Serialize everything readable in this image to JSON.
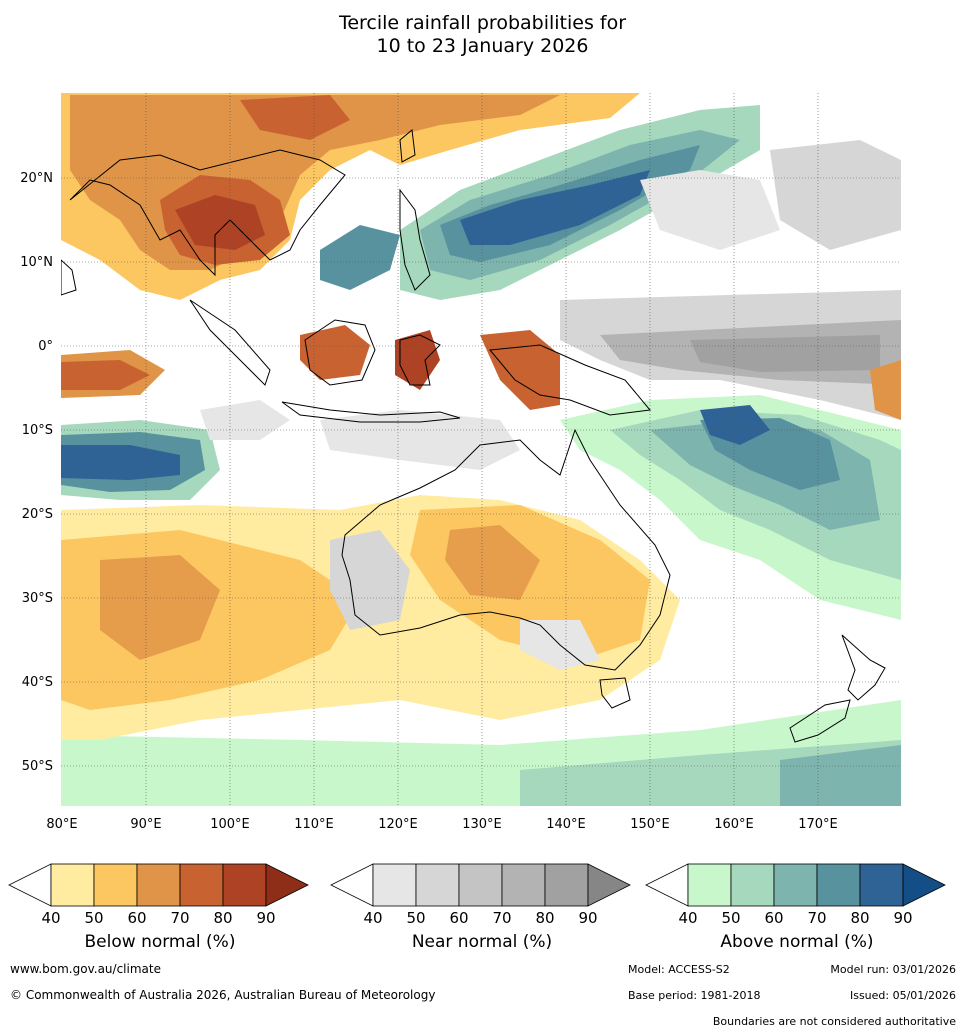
{
  "title_line1": "Tercile rainfall probabilities for",
  "title_line2": "10 to 23 January 2026",
  "map": {
    "lat_labels": [
      "20°N",
      "10°N",
      "0°",
      "10°S",
      "20°S",
      "30°S",
      "40°S",
      "50°S"
    ],
    "lon_labels": [
      "80°E",
      "90°E",
      "100°E",
      "110°E",
      "120°E",
      "130°E",
      "140°E",
      "150°E",
      "160°E",
      "170°E"
    ]
  },
  "colorbars": [
    {
      "title": "Below normal (%)",
      "ticks": [
        "40",
        "50",
        "60",
        "70",
        "80",
        "90"
      ],
      "colors": [
        "#ffeca0",
        "#fcc761",
        "#e09448",
        "#c96231",
        "#ad4225",
        "#8e2e19"
      ]
    },
    {
      "title": "Near normal (%)",
      "ticks": [
        "40",
        "50",
        "60",
        "70",
        "80",
        "90"
      ],
      "colors": [
        "#e6e6e6",
        "#d6d6d6",
        "#c4c4c4",
        "#b3b3b3",
        "#a1a1a1",
        "#868686"
      ]
    },
    {
      "title": "Above normal (%)",
      "ticks": [
        "40",
        "50",
        "60",
        "70",
        "80",
        "90"
      ],
      "colors": [
        "#c9f7cc",
        "#a5d8bc",
        "#7db4ad",
        "#58929f",
        "#2f6396",
        "#144e86"
      ]
    }
  ],
  "footer": {
    "website": "www.bom.gov.au/climate",
    "copyright": "© Commonwealth of Australia 2026, Australian Bureau of Meteorology",
    "model": "Model: ACCESS-S2",
    "model_run": "Model run: 03/01/2026",
    "base_period": "Base period: 1981-2018",
    "issued": "Issued: 05/01/2026",
    "boundaries": "Boundaries are not considered authoritative"
  }
}
